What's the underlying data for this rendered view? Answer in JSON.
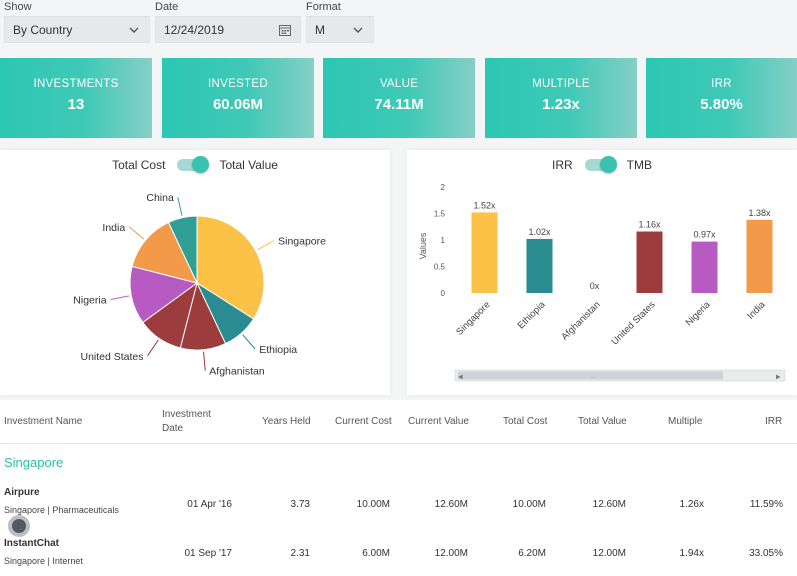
{
  "filters": {
    "show": {
      "label": "Show",
      "value": "By Country"
    },
    "date": {
      "label": "Date",
      "value": "12/24/2019"
    },
    "format": {
      "label": "Format",
      "value": "M"
    }
  },
  "kpis": [
    {
      "label": "INVESTMENTS",
      "value": "13"
    },
    {
      "label": "INVESTED",
      "value": "60.06M"
    },
    {
      "label": "VALUE",
      "value": "74.11M"
    },
    {
      "label": "MULTIPLE",
      "value": "1.23x"
    },
    {
      "label": "IRR",
      "value": "5.80%"
    }
  ],
  "pie_panel": {
    "toggle_left": "Total Cost",
    "toggle_right": "Total Value",
    "labels": [
      "Singapore",
      "Ethiopia",
      "Afghanistan",
      "United States",
      "Nigeria",
      "India",
      "China"
    ]
  },
  "bar_panel": {
    "toggle_left": "IRR",
    "toggle_right": "TMB",
    "scroll_mid": "..."
  },
  "chart_data": [
    {
      "type": "pie",
      "title": "",
      "categories": [
        "Singapore",
        "Ethiopia",
        "Afghanistan",
        "United States",
        "Nigeria",
        "India",
        "China"
      ],
      "values": [
        34,
        9,
        11,
        11,
        14,
        14,
        7
      ],
      "colors": [
        "#fcc248",
        "#2a8b91",
        "#9c3c3d",
        "#9c3c3d",
        "#b75bc3",
        "#f2994a",
        "#2f9e95"
      ]
    },
    {
      "type": "bar",
      "categories": [
        "Singapore",
        "Ethiopia",
        "Afghanistan",
        "United States",
        "Nigeria",
        "India"
      ],
      "values": [
        1.52,
        1.02,
        0,
        1.16,
        0.97,
        1.38
      ],
      "data_labels": [
        "1.52x",
        "1.02x",
        "0x",
        "1.16x",
        "0.97x",
        "1.38x"
      ],
      "colors": [
        "#fcc248",
        "#2a8b91",
        "#9c3c3d",
        "#9c3c3d",
        "#b75bc3",
        "#f2994a"
      ],
      "ylabel": "Values",
      "yticks": [
        "0",
        "0.5",
        "1",
        "1.5",
        "2"
      ],
      "ylim": [
        0,
        2
      ]
    }
  ],
  "table": {
    "headers": {
      "name": "Investment Name",
      "date_1": "Investment",
      "date_2": "Date",
      "years": "Years Held",
      "cc": "Current Cost",
      "cv": "Current Value",
      "tc": "Total Cost",
      "tv": "Total Value",
      "mult": "Multiple",
      "irr": "IRR"
    },
    "group": "Singapore",
    "rows": [
      {
        "name": "Airpure",
        "sub": "Singapore |  Pharmaceuticals",
        "date": "01 Apr '16",
        "years": "3.73",
        "cc": "10.00M",
        "cv": "12.60M",
        "tc": "10.00M",
        "tv": "12.60M",
        "mult": "1.26x",
        "irr": "11.59%"
      },
      {
        "name": "InstantChat",
        "sub": "Singapore |  Internet",
        "date": "01 Sep '17",
        "years": "2.31",
        "cc": "6.00M",
        "cv": "12.00M",
        "tc": "6.20M",
        "tv": "12.00M",
        "mult": "1.94x",
        "irr": "33.05%"
      }
    ]
  }
}
